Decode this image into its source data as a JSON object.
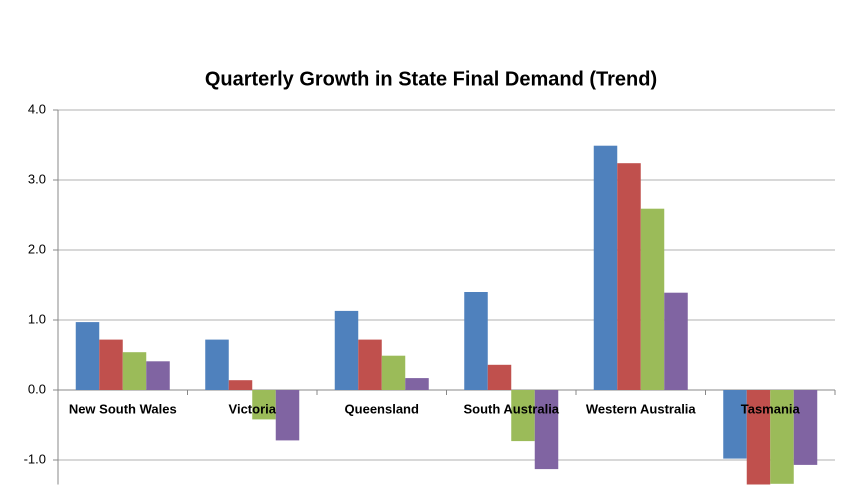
{
  "chart_data": {
    "type": "bar",
    "title": "Quarterly Growth in State Final Demand (Trend)",
    "categories": [
      "New South Wales",
      "Victoria",
      "Queensland",
      "South Australia",
      "Western Australia",
      "Tasmania"
    ],
    "series": [
      {
        "color": "#4f81bd",
        "values": [
          0.97,
          0.72,
          1.13,
          1.4,
          3.49,
          -0.98
        ]
      },
      {
        "color": "#c0504d",
        "values": [
          0.72,
          0.14,
          0.72,
          0.36,
          3.24,
          -1.35
        ]
      },
      {
        "color": "#9bbb59",
        "values": [
          0.54,
          -0.42,
          0.49,
          -0.73,
          2.59,
          -1.34
        ]
      },
      {
        "color": "#8064a2",
        "values": [
          0.41,
          -0.72,
          0.17,
          -1.13,
          1.39,
          -1.07
        ]
      }
    ],
    "ylim": [
      -1.35,
      4.0
    ],
    "yticks": [
      {
        "value": -1,
        "label": "-1.0"
      },
      {
        "value": 0,
        "label": "0.0"
      },
      {
        "value": 1,
        "label": "1.0"
      },
      {
        "value": 2,
        "label": "2.0"
      },
      {
        "value": 3,
        "label": "3.0"
      },
      {
        "value": 4,
        "label": "4.0"
      }
    ],
    "grid": true
  }
}
